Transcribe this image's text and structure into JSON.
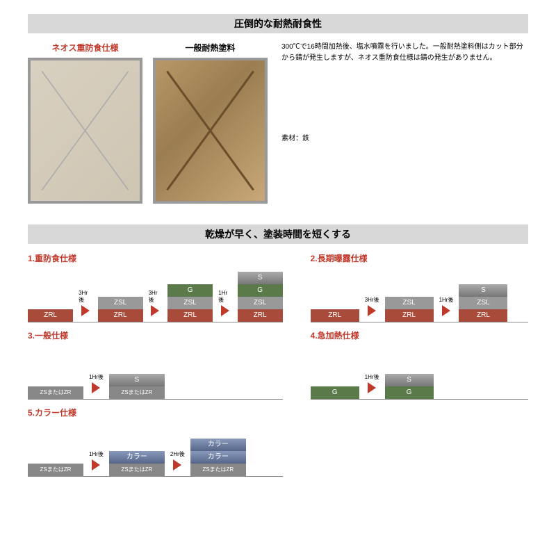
{
  "section1": {
    "header": "圧倒的な耐熱耐食性",
    "left_title": "ネオス重防食仕様",
    "right_title": "一般耐熱塗料",
    "description": "300℃で16時間加熱後、塩水噴霧を行いました。一般耐熱塗料側はカット部分から錆が発生しますが、ネオス重防食仕様は錆の発生がありません。",
    "material": "素材：鉄"
  },
  "section2": {
    "header": "乾燥が早く、塗装時間を短くする",
    "colors": {
      "ZRL": "#a84b3a",
      "ZSL": "#999999",
      "G": "#5a7a4a",
      "S_grad": "#aaaaaa",
      "ZSZR": "#888888",
      "color_layer": "#7788aa",
      "arrow": "#c0392b",
      "title": "#c0392b"
    },
    "diagrams": [
      {
        "title": "1.重防食仕様",
        "stacks": [
          [
            "ZRL"
          ],
          {
            "arrow": "3Hr後"
          },
          [
            "ZSL",
            "ZRL"
          ],
          {
            "arrow": "3Hr後"
          },
          [
            "G",
            "ZSL",
            "ZRL"
          ],
          {
            "arrow": "1Hr後"
          },
          [
            "S",
            "G",
            "ZSL",
            "ZRL"
          ]
        ]
      },
      {
        "title": "2.長期曝露仕様",
        "stacks": [
          [
            "ZRL"
          ],
          {
            "arrow": "3Hr後"
          },
          [
            "ZSL",
            "ZRL"
          ],
          {
            "arrow": "1Hr後"
          },
          [
            "S",
            "ZSL",
            "ZRL"
          ]
        ]
      },
      {
        "title": "3.一般仕様",
        "stacks": [
          [
            "ZSまたはZR"
          ],
          {
            "arrow": "1Hr後"
          },
          [
            "S",
            "ZSまたはZR"
          ]
        ]
      },
      {
        "title": "4.急加熱仕様",
        "stacks": [
          [
            "G"
          ],
          {
            "arrow": "1Hr後"
          },
          [
            "S",
            "G"
          ]
        ]
      },
      {
        "title": "5.カラー仕様",
        "stacks": [
          [
            "ZSまたはZR"
          ],
          {
            "arrow": "1Hr後"
          },
          [
            "カラー",
            "ZSまたはZR"
          ],
          {
            "arrow": "2Hr後"
          },
          [
            "カラー",
            "カラー",
            "ZSまたはZR"
          ]
        ]
      }
    ]
  }
}
